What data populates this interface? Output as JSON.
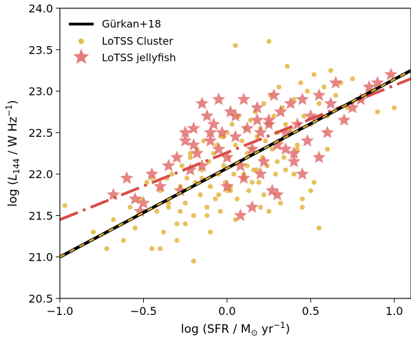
{
  "chart_data": {
    "type": "scatter",
    "title": "",
    "xlabel": "log (SFR / M⊙ yr⁻¹)",
    "ylabel": "log (L144 / W Hz⁻¹)",
    "xlim": [
      -1.0,
      1.1
    ],
    "ylim": [
      20.5,
      24.0
    ],
    "xticks": [
      "−1.0",
      "−0.5",
      "0.0",
      "0.5",
      "1.0"
    ],
    "yticks": [
      "20.5",
      "21.0",
      "21.5",
      "22.0",
      "22.5",
      "23.0",
      "23.5",
      "24.0"
    ],
    "grid": false,
    "legend_position": "top-left",
    "colors": {
      "gurkan": "#000000",
      "gurkan_dash": "#e0b030",
      "cluster": "#e0b030",
      "jellyfish": "#e06666",
      "jellyfish_fit": "#d94c45"
    },
    "legend": [
      "Gürkan+18",
      "LoTSS Cluster",
      "LoTSS jellyfish"
    ],
    "series": [
      {
        "name": "Gürkan+18",
        "kind": "line",
        "x": [
          -1.0,
          1.1
        ],
        "y": [
          21.0,
          23.25
        ]
      },
      {
        "name": "",
        "kind": "jellyfish-fit",
        "x": [
          -1.0,
          1.1
        ],
        "y": [
          21.45,
          23.15
        ]
      },
      {
        "name": "LoTSS Cluster",
        "kind": "scatter",
        "x": [
          -0.97,
          -0.8,
          -0.72,
          -0.68,
          -0.62,
          -0.58,
          -0.55,
          -0.52,
          -0.48,
          -0.45,
          -0.42,
          -0.4,
          -0.38,
          -0.36,
          -0.35,
          -0.33,
          -0.3,
          -0.28,
          -0.27,
          -0.25,
          -0.24,
          -0.22,
          -0.2,
          -0.19,
          -0.18,
          -0.16,
          -0.15,
          -0.14,
          -0.12,
          -0.11,
          -0.1,
          -0.08,
          -0.07,
          -0.06,
          -0.05,
          -0.04,
          -0.03,
          -0.02,
          -0.01,
          0.0,
          0.01,
          0.02,
          0.03,
          0.04,
          0.05,
          0.06,
          0.07,
          0.08,
          0.09,
          0.1,
          0.11,
          0.12,
          0.13,
          0.14,
          0.15,
          0.16,
          0.17,
          0.18,
          0.19,
          0.2,
          0.21,
          0.22,
          0.23,
          0.24,
          0.25,
          0.26,
          0.27,
          0.28,
          0.29,
          0.3,
          0.31,
          0.32,
          0.33,
          0.34,
          0.35,
          0.36,
          0.38,
          0.4,
          0.42,
          0.44,
          0.46,
          0.48,
          0.5,
          0.52,
          0.55,
          0.58,
          0.6,
          0.62,
          0.65,
          0.68,
          0.72,
          0.75,
          0.8,
          0.85,
          0.9,
          1.0,
          -0.45,
          -0.35,
          -0.25,
          -0.15,
          -0.05,
          0.05,
          0.15,
          0.25,
          0.35,
          0.45,
          0.55,
          -0.3,
          -0.2,
          -0.1,
          0.0,
          0.1,
          0.2,
          0.3,
          0.4,
          0.5,
          0.6,
          -0.4,
          -0.28,
          -0.12,
          0.02,
          0.12,
          0.22,
          0.32,
          0.42,
          0.52,
          -0.22,
          -0.02,
          0.18,
          0.38,
          0.05,
          0.25,
          0.45
        ],
        "y": [
          21.62,
          21.3,
          21.1,
          21.45,
          21.2,
          21.6,
          21.35,
          21.7,
          21.9,
          21.1,
          21.55,
          21.8,
          21.3,
          21.95,
          21.6,
          22.0,
          21.4,
          21.85,
          22.1,
          21.65,
          21.95,
          22.2,
          21.5,
          21.9,
          22.3,
          21.75,
          22.05,
          22.4,
          21.6,
          22.15,
          21.85,
          22.25,
          21.7,
          22.35,
          22.0,
          21.55,
          22.45,
          22.1,
          21.9,
          22.5,
          22.2,
          21.8,
          22.6,
          22.0,
          22.35,
          21.7,
          22.7,
          22.15,
          22.4,
          21.95,
          22.55,
          22.25,
          21.8,
          22.65,
          22.3,
          22.05,
          22.75,
          22.45,
          21.9,
          22.55,
          22.2,
          22.85,
          22.4,
          22.1,
          22.6,
          22.95,
          22.3,
          22.7,
          22.0,
          22.5,
          23.05,
          22.4,
          22.8,
          22.2,
          22.6,
          23.3,
          22.5,
          22.9,
          22.3,
          23.1,
          22.7,
          23.0,
          22.6,
          23.2,
          22.85,
          23.05,
          22.7,
          23.25,
          22.95,
          23.1,
          22.8,
          23.15,
          22.9,
          23.0,
          22.75,
          22.8,
          21.95,
          21.65,
          21.4,
          21.95,
          21.75,
          21.45,
          21.9,
          21.55,
          22.05,
          21.6,
          21.35,
          21.2,
          20.95,
          21.3,
          21.8,
          22.0,
          21.6,
          22.15,
          22.0,
          21.8,
          22.3,
          21.1,
          21.55,
          21.5,
          21.85,
          22.1,
          21.75,
          21.65,
          22.35,
          21.9,
          22.25,
          22.45,
          22.05,
          22.55,
          23.55,
          23.6,
          21.7
        ],
        "note_points": []
      },
      {
        "name": "LoTSS jellyfish",
        "kind": "scatter",
        "x": [
          -0.68,
          -0.6,
          -0.55,
          -0.52,
          -0.5,
          -0.45,
          -0.4,
          -0.35,
          -0.3,
          -0.28,
          -0.25,
          -0.22,
          -0.2,
          -0.18,
          -0.15,
          -0.12,
          -0.1,
          -0.08,
          -0.05,
          -0.03,
          0.0,
          0.02,
          0.05,
          0.08,
          0.1,
          0.12,
          0.15,
          0.18,
          0.2,
          0.22,
          0.25,
          0.28,
          0.3,
          0.32,
          0.35,
          0.38,
          0.4,
          0.42,
          0.45,
          0.48,
          0.5,
          0.55,
          0.6,
          0.62,
          0.65,
          0.7,
          0.75,
          0.8,
          0.85,
          0.9,
          0.98,
          -0.2,
          -0.1,
          0.0,
          0.1,
          0.2,
          0.3,
          0.4,
          -0.15,
          0.05,
          0.25,
          0.35,
          -0.05,
          0.15,
          0.27,
          0.45,
          0.55,
          -0.25,
          0.08,
          0.18
        ],
        "y": [
          21.75,
          21.95,
          21.7,
          21.55,
          21.65,
          22.0,
          21.85,
          22.1,
          22.2,
          21.8,
          22.4,
          22.05,
          22.55,
          22.25,
          22.1,
          22.7,
          22.4,
          22.6,
          22.3,
          22.5,
          22.2,
          22.75,
          22.45,
          22.1,
          22.9,
          22.55,
          22.3,
          22.8,
          22.5,
          22.15,
          22.65,
          22.95,
          22.35,
          22.75,
          22.5,
          22.85,
          22.25,
          22.6,
          22.9,
          22.4,
          22.7,
          22.95,
          22.5,
          22.85,
          23.1,
          22.65,
          22.8,
          22.9,
          23.05,
          23.1,
          23.2,
          22.35,
          22.5,
          21.85,
          21.95,
          22.0,
          21.75,
          22.15,
          22.85,
          22.7,
          22.6,
          22.3,
          22.9,
          21.6,
          21.8,
          22.0,
          22.2,
          22.5,
          21.5,
          22.65
        ]
      }
    ]
  }
}
